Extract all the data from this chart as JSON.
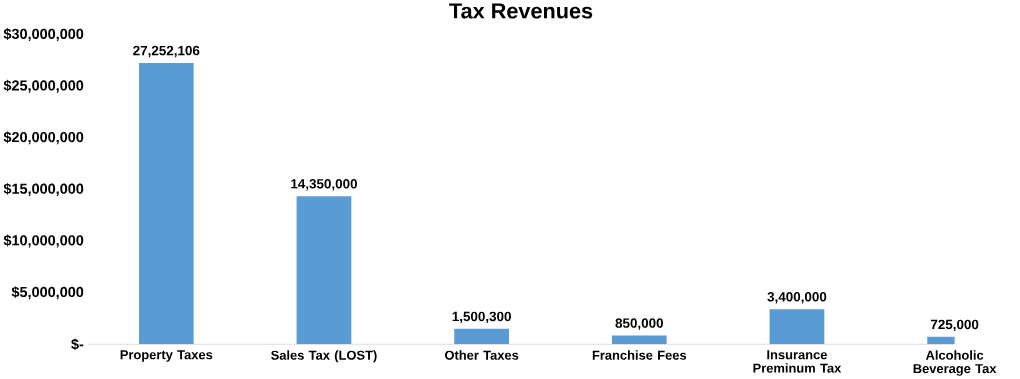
{
  "chart_data": {
    "type": "bar",
    "title": "Tax Revenues",
    "categories": [
      "Property Taxes",
      "Sales Tax (LOST)",
      "Other Taxes",
      "Franchise Fees",
      "Insurance Preminum Tax",
      "Alcoholic Beverage Tax"
    ],
    "values": [
      27252106,
      14350000,
      1500300,
      850000,
      3400000,
      725000
    ],
    "value_labels": [
      "27,252,106",
      "14,350,000",
      "1,500,300",
      "850,000",
      "3,400,000",
      "725,000"
    ],
    "color": "#5b9bd5",
    "ylim": [
      0,
      30000000
    ],
    "yticks": [
      {
        "value": 0,
        "label": "$-"
      },
      {
        "value": 5000000,
        "label": "$5,000,000"
      },
      {
        "value": 10000000,
        "label": "$10,000,000"
      },
      {
        "value": 15000000,
        "label": "$15,000,000"
      },
      {
        "value": 20000000,
        "label": "$20,000,000"
      },
      {
        "value": 25000000,
        "label": "$25,000,000"
      },
      {
        "value": 30000000,
        "label": "$30,000,000"
      }
    ],
    "grid": false
  }
}
